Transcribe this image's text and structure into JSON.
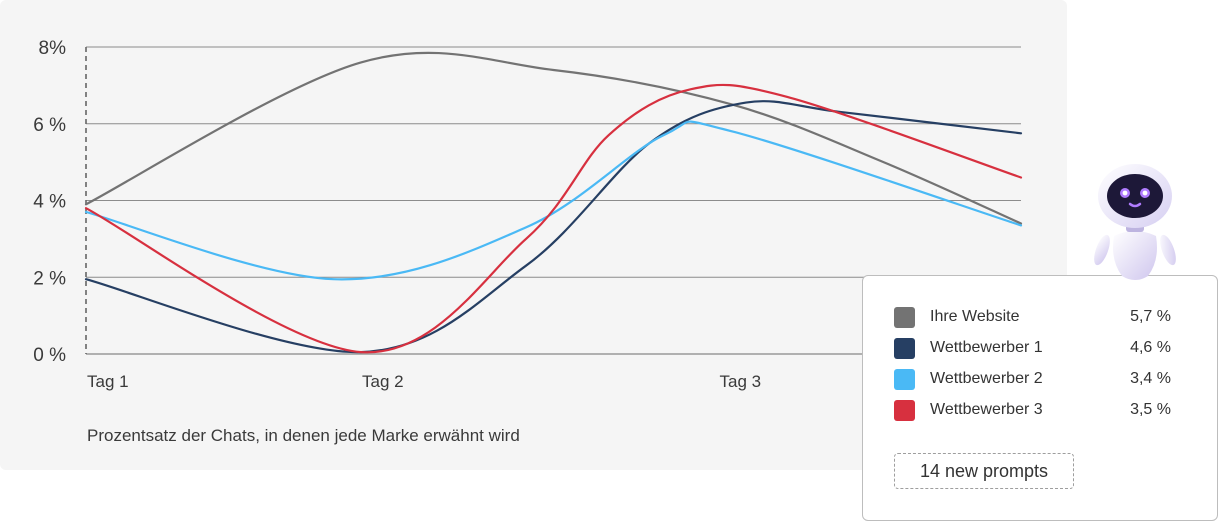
{
  "chart_data": {
    "type": "line",
    "x": [
      "Tag 1",
      "Tag 2",
      "Tag 3"
    ],
    "x_ticks": [
      {
        "label": "Tag 1",
        "pos": 0
      },
      {
        "label": "Tag 2",
        "pos": 1
      },
      {
        "label": "Tag 3",
        "pos": 2.3
      }
    ],
    "x_range": [
      0,
      3.4
    ],
    "y_ticks": [
      "0 %",
      "2 %",
      "4 %",
      "6 %",
      "8%"
    ],
    "ylim": [
      0,
      8
    ],
    "grid": true,
    "caption": "Prozentsatz der Chats, in denen jede Marke erwähnt wird",
    "series": [
      {
        "name": "Ihre Website",
        "color": "#737373",
        "points": [
          [
            0,
            3.9
          ],
          [
            1,
            7.6
          ],
          [
            1.7,
            7.4
          ],
          [
            2.35,
            6.5
          ],
          [
            2.9,
            5.0
          ],
          [
            3.4,
            3.4
          ]
        ]
      },
      {
        "name": "Wettbewerber 1",
        "color": "#263f63",
        "points": [
          [
            0,
            1.95
          ],
          [
            1,
            0.05
          ],
          [
            1.6,
            2.3
          ],
          [
            2.05,
            5.5
          ],
          [
            2.4,
            6.55
          ],
          [
            2.75,
            6.3
          ],
          [
            3.4,
            5.75
          ]
        ]
      },
      {
        "name": "Wettbewerber 2",
        "color": "#4ab9f5",
        "points": [
          [
            0,
            3.7
          ],
          [
            0.9,
            1.95
          ],
          [
            1.6,
            3.3
          ],
          [
            2.1,
            5.7
          ],
          [
            2.35,
            5.8
          ],
          [
            3.4,
            3.35
          ]
        ]
      },
      {
        "name": "Wettbewerber 3",
        "color": "#d7303f",
        "points": [
          [
            0,
            3.8
          ],
          [
            1,
            0.05
          ],
          [
            1.6,
            3.0
          ],
          [
            1.9,
            5.7
          ],
          [
            2.2,
            6.9
          ],
          [
            2.55,
            6.7
          ],
          [
            3.4,
            4.6
          ]
        ]
      }
    ]
  },
  "legend": {
    "items": [
      {
        "name": "Ihre Website",
        "value": "5,7 %",
        "color": "#737373"
      },
      {
        "name": "Wettbewerber 1",
        "value": "4,6 %",
        "color": "#263f63"
      },
      {
        "name": "Wettbewerber 2",
        "value": "3,4 %",
        "color": "#4ab9f5"
      },
      {
        "name": "Wettbewerber 3",
        "value": "3,5 %",
        "color": "#d7303f"
      }
    ],
    "button_label": "14 new prompts"
  },
  "mascot": {
    "icon": "robot-mascot-icon"
  }
}
